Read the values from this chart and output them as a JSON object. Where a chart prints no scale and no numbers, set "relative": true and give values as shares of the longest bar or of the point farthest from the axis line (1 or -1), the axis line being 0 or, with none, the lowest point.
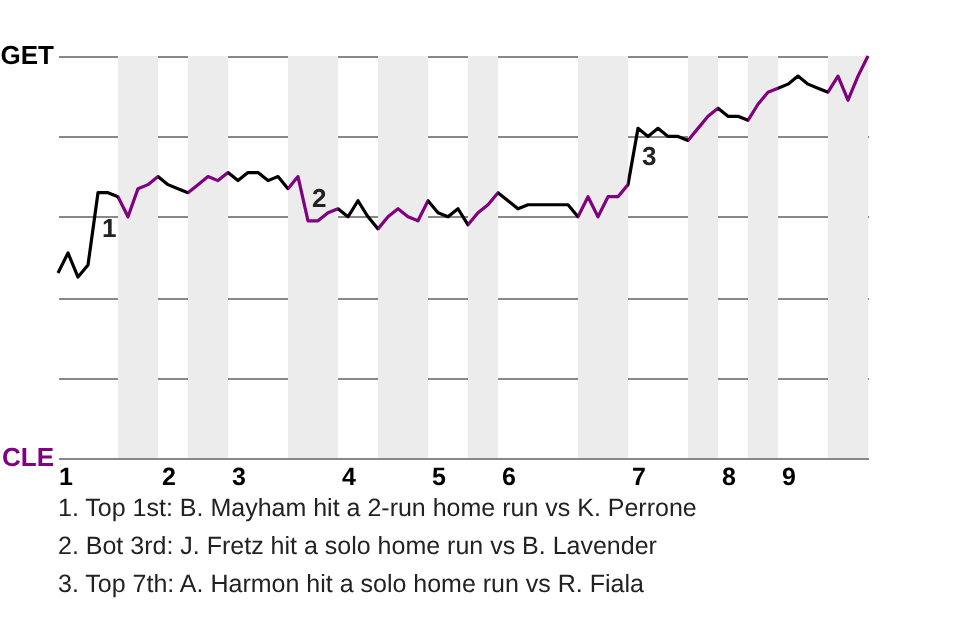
{
  "chart_data": {
    "type": "line",
    "relative": true,
    "categories": [
      "1",
      null,
      null,
      null,
      null,
      null,
      null,
      null,
      null,
      null,
      null,
      "2",
      null,
      null,
      null,
      null,
      null,
      null,
      "3",
      null,
      null,
      null,
      null,
      null,
      null,
      null,
      null,
      null,
      null,
      "4",
      null,
      null,
      null,
      null,
      null,
      null,
      null,
      null,
      "5",
      null,
      null,
      null,
      null,
      null,
      null,
      "6",
      null,
      null,
      null,
      null,
      null,
      null,
      null,
      null,
      null,
      null,
      null,
      null,
      "7",
      null,
      null,
      null,
      null,
      null,
      null,
      null,
      null,
      "8",
      null,
      null,
      null,
      null,
      null,
      "9",
      null,
      null,
      null,
      null,
      null,
      null,
      null,
      null
    ],
    "series": [
      {
        "color": "#000000",
        "values": [
          0.46,
          0.51,
          0.45,
          0.48,
          0.66,
          0.66,
          0.65,
          0.6,
          0.67,
          0.68,
          0.7,
          0.68,
          0.67,
          0.66,
          0.68,
          0.7,
          0.69,
          0.71,
          0.69,
          0.71,
          0.71,
          0.69,
          0.7,
          0.67,
          0.7,
          0.59,
          0.59,
          0.61,
          0.62,
          0.6,
          0.64,
          0.6,
          0.57,
          0.6,
          0.62,
          0.6,
          0.59,
          0.64,
          0.61,
          0.6,
          0.62,
          0.58,
          0.61,
          0.63,
          0.66,
          0.64,
          0.62,
          0.63,
          0.63,
          0.63,
          0.63,
          0.63,
          0.6,
          0.65,
          0.6,
          0.65,
          0.65,
          0.68,
          0.82,
          0.8,
          0.82,
          0.8,
          0.8,
          0.79,
          0.82,
          0.85,
          0.87,
          0.85,
          0.85,
          0.84,
          0.88,
          0.91,
          0.92,
          0.93,
          0.95,
          0.93,
          0.92,
          0.91,
          0.95,
          0.89,
          0.95,
          1.0
        ],
        "colors": [
          "#000000",
          "#000000",
          "#000000",
          "#000000",
          "#000000",
          "#000000",
          "#800080",
          "#800080",
          "#800080",
          "#800080",
          "#000000",
          "#000000",
          "#000000",
          "#800080",
          "#800080",
          "#800080",
          "#800080",
          "#000000",
          "#000000",
          "#000000",
          "#000000",
          "#000000",
          "#000000",
          "#800080",
          "#800080",
          "#800080",
          "#800080",
          "#800080",
          "#000000",
          "#000000",
          "#000000",
          "#000000",
          "#800080",
          "#800080",
          "#800080",
          "#800080",
          "#800080",
          "#000000",
          "#000000",
          "#000000",
          "#000000",
          "#800080",
          "#800080",
          "#800080",
          "#000000",
          "#000000",
          "#000000",
          "#000000",
          "#000000",
          "#000000",
          "#000000",
          "#000000",
          "#800080",
          "#800080",
          "#800080",
          "#800080",
          "#800080",
          "#000000",
          "#000000",
          "#000000",
          "#000000",
          "#000000",
          "#000000",
          "#800080",
          "#800080",
          "#800080",
          "#000000",
          "#000000",
          "#000000",
          "#800080",
          "#800080",
          "#800080",
          "#000000",
          "#000000",
          "#000000",
          "#000000",
          "#000000",
          "#800080",
          "#800080",
          "#800080",
          "#800080",
          "#800080"
        ]
      }
    ],
    "grid": "y",
    "marker": "none",
    "line_style": "solid",
    "annotations": [
      "GET",
      "CLE",
      "1",
      "2",
      "3",
      "1. Top 1st: B. Mayham hit a 2-run home run vs K. Perrone",
      "2. Bot 3rd: J. Fretz hit a solo home run vs B. Lavender",
      "3. Top 7th: A. Harmon hit a solo home run vs R. Fiala"
    ]
  }
}
